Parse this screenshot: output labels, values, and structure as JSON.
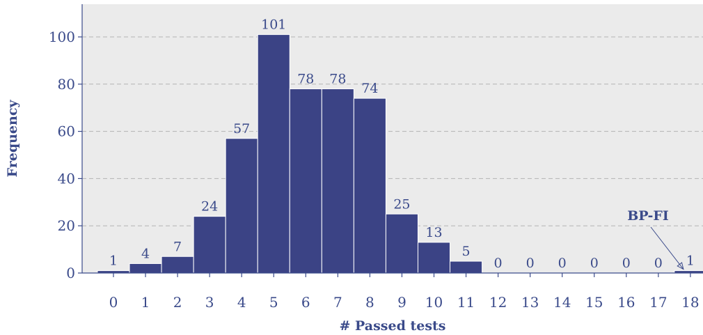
{
  "chart_data": {
    "type": "bar",
    "categories": [
      "0",
      "1",
      "2",
      "3",
      "4",
      "5",
      "6",
      "7",
      "8",
      "9",
      "10",
      "11",
      "12",
      "13",
      "14",
      "15",
      "16",
      "17",
      "18"
    ],
    "values": [
      1,
      4,
      7,
      24,
      57,
      101,
      78,
      78,
      74,
      25,
      13,
      5,
      0,
      0,
      0,
      0,
      0,
      0,
      1
    ],
    "xlabel": "# Passed tests",
    "ylabel": "Frequency",
    "ylim": [
      0,
      110
    ],
    "yticks": [
      0,
      20,
      40,
      60,
      80,
      100
    ],
    "grid": "horizontal dashed",
    "annotation": {
      "text": "BP-FI",
      "category": "18"
    },
    "colors": {
      "bar_fill": "#3b4385",
      "bar_edge": "#ffffff",
      "plot_background": "#ebebeb",
      "grid": "#b3b3b3",
      "text": "#3a4a8a",
      "axis": "#3a4a8a"
    }
  }
}
